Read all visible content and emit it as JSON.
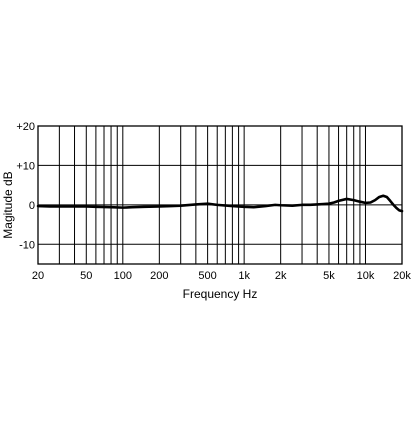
{
  "chart_data": {
    "type": "line",
    "title": "",
    "xlabel": "Frequency Hz",
    "ylabel": "Magitude dB",
    "x_scale": "log",
    "xlim": [
      20,
      20000
    ],
    "ylim": [
      -15,
      20
    ],
    "grid": true,
    "x_major_ticks": [
      {
        "value": 20,
        "label": "20"
      },
      {
        "value": 50,
        "label": "50"
      },
      {
        "value": 100,
        "label": "100"
      },
      {
        "value": 200,
        "label": "200"
      },
      {
        "value": 500,
        "label": "500"
      },
      {
        "value": 1000,
        "label": "1k"
      },
      {
        "value": 2000,
        "label": "2k"
      },
      {
        "value": 5000,
        "label": "5k"
      },
      {
        "value": 10000,
        "label": "10k"
      },
      {
        "value": 20000,
        "label": "20k"
      }
    ],
    "x_minor_grid": [
      30,
      40,
      60,
      70,
      80,
      90,
      300,
      400,
      600,
      700,
      800,
      900,
      3000,
      4000,
      6000,
      7000,
      8000,
      9000
    ],
    "y_ticks": [
      {
        "value": 20,
        "label": "+20"
      },
      {
        "value": 10,
        "label": "+10"
      },
      {
        "value": 0,
        "label": "0"
      },
      {
        "value": -10,
        "label": "-10"
      }
    ],
    "series": [
      {
        "name": "",
        "color": "#000000",
        "x": [
          20,
          25,
          30,
          40,
          50,
          60,
          80,
          100,
          120,
          150,
          200,
          250,
          300,
          400,
          500,
          600,
          800,
          1000,
          1200,
          1500,
          1800,
          2000,
          2500,
          3000,
          3500,
          4000,
          4500,
          5000,
          5500,
          6000,
          7000,
          8000,
          9000,
          10000,
          11000,
          12000,
          13000,
          14000,
          15000,
          16000,
          17000,
          18000,
          19000,
          20000
        ],
        "y": [
          -0.3,
          -0.4,
          -0.4,
          -0.4,
          -0.4,
          -0.5,
          -0.6,
          -0.7,
          -0.6,
          -0.5,
          -0.4,
          -0.3,
          -0.2,
          0.1,
          0.3,
          0.0,
          -0.3,
          -0.5,
          -0.6,
          -0.3,
          0.0,
          -0.1,
          -0.2,
          0.0,
          0.0,
          0.1,
          0.2,
          0.3,
          0.6,
          1.0,
          1.5,
          1.2,
          0.8,
          0.5,
          0.6,
          1.2,
          2.0,
          2.3,
          2.0,
          1.0,
          0.0,
          -0.8,
          -1.4,
          -1.6
        ]
      }
    ]
  }
}
